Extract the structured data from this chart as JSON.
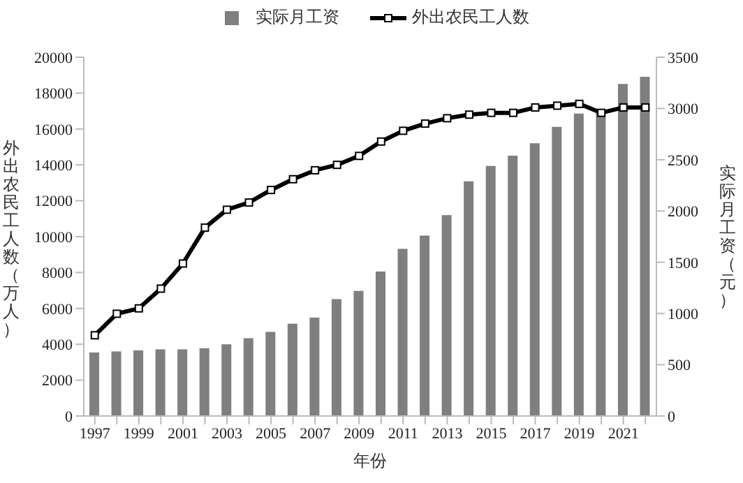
{
  "chart_data": {
    "type": "bar",
    "xlabel": "年份",
    "ylabel": "外出农民工人数（万人）",
    "y2label": "实际月工资（元）",
    "categories": [
      "1997",
      null,
      "1999",
      null,
      "2001",
      null,
      "2003",
      null,
      "2005",
      null,
      "2007",
      null,
      "2009",
      null,
      "2011",
      null,
      "2013",
      null,
      "2015",
      null,
      "2017",
      null,
      "2019",
      null,
      "2021",
      null
    ],
    "series": [
      {
        "name": "实际月工资",
        "axis": "y2",
        "color": "#7f7f7f",
        "values": [
          620,
          630,
          640,
          650,
          650,
          660,
          700,
          760,
          820,
          900,
          960,
          1140,
          1220,
          1410,
          1630,
          1760,
          1960,
          2290,
          2440,
          2540,
          2660,
          2820,
          2950,
          2990,
          3240,
          3310
        ]
      },
      {
        "name": "外出农民工人数",
        "type": "line",
        "color": "#000000",
        "marker": "square",
        "line_style": "solid",
        "values": [
          4500,
          5700,
          6000,
          7100,
          8500,
          10500,
          11500,
          11900,
          12600,
          13200,
          13700,
          14000,
          14500,
          15300,
          15900,
          16300,
          16600,
          16800,
          16900,
          16900,
          17200,
          17300,
          17400,
          16900,
          17200,
          17200
        ]
      }
    ],
    "ylim": [
      0,
      20000
    ],
    "yticks": [
      0,
      2000,
      4000,
      6000,
      8000,
      10000,
      12000,
      14000,
      16000,
      18000,
      20000
    ],
    "y2lim": [
      0,
      3500
    ],
    "y2ticks": [
      0,
      500,
      1000,
      1500,
      2000,
      2500,
      3000,
      3500
    ],
    "grid": false,
    "legend": "top"
  }
}
